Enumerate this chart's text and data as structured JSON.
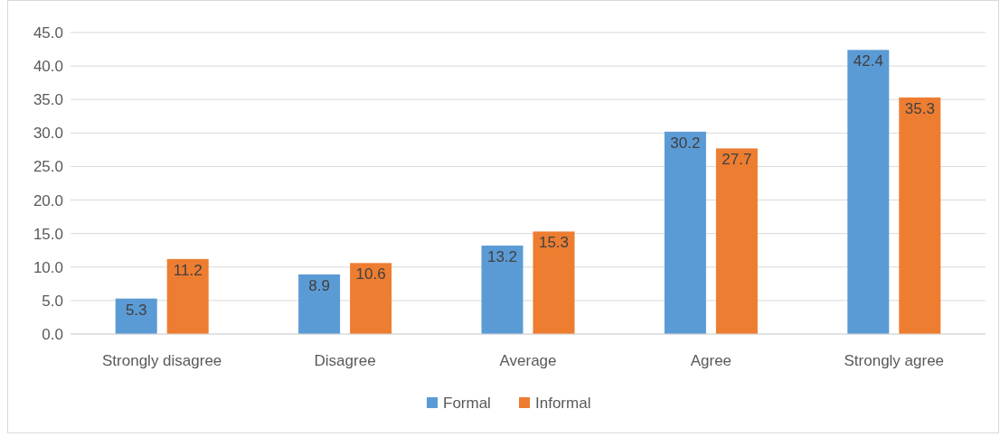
{
  "chart_data": {
    "type": "bar",
    "categories": [
      "Strongly disagree",
      "Disagree",
      "Average",
      "Agree",
      "Strongly agree"
    ],
    "series": [
      {
        "name": "Formal",
        "color": "#5b9bd5",
        "values": [
          5.3,
          8.9,
          13.2,
          30.2,
          42.4
        ]
      },
      {
        "name": "Informal",
        "color": "#ed7d31",
        "values": [
          11.2,
          10.6,
          15.3,
          27.7,
          35.3
        ]
      }
    ],
    "ylim": [
      0,
      45
    ],
    "yticks": [
      {
        "value": 0,
        "label": "0.0"
      },
      {
        "value": 5,
        "label": "5.0"
      },
      {
        "value": 10,
        "label": "10.0"
      },
      {
        "value": 15,
        "label": "15.0"
      },
      {
        "value": 20,
        "label": "20.0"
      },
      {
        "value": 25,
        "label": "25.0"
      },
      {
        "value": 30,
        "label": "30.0"
      },
      {
        "value": 35,
        "label": "35.0"
      },
      {
        "value": 40,
        "label": "40.0"
      },
      {
        "value": 45,
        "label": "45.0"
      }
    ],
    "grid": "y",
    "legend": "bottom",
    "data_labels": true
  }
}
